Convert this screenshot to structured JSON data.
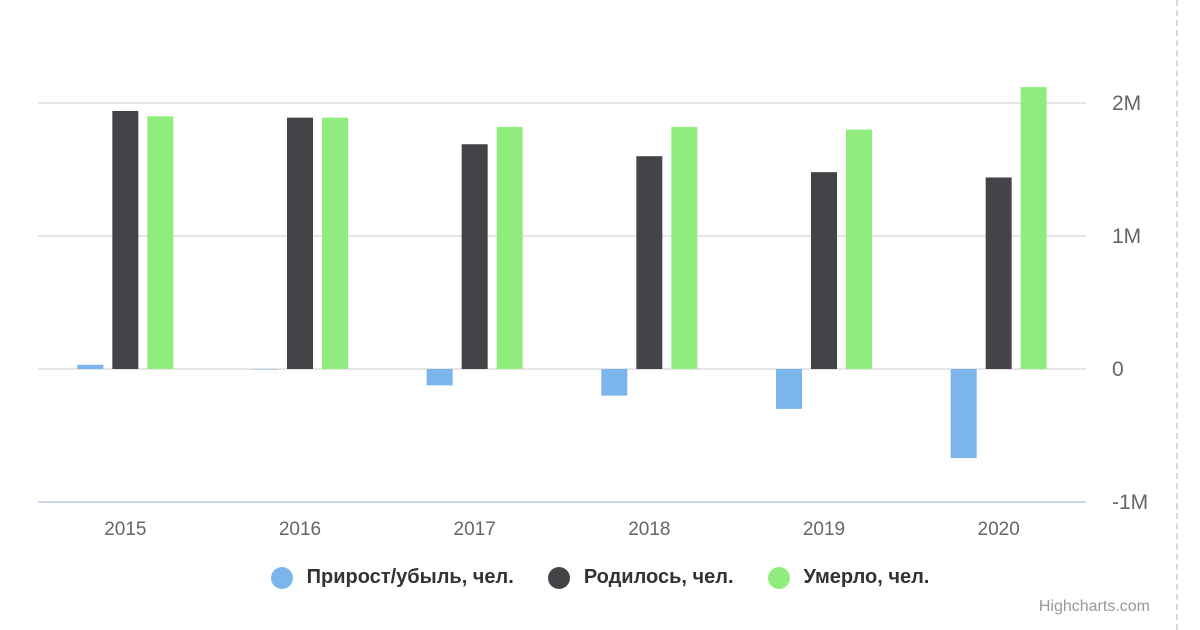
{
  "chart_data": {
    "type": "bar",
    "categories": [
      "2015",
      "2016",
      "2017",
      "2018",
      "2019",
      "2020"
    ],
    "series": [
      {
        "name": "Прирост/убыль, чел.",
        "color": "#7cb5ec",
        "values": [
          32000,
          -2000,
          -123000,
          -200000,
          -300000,
          -670000
        ]
      },
      {
        "name": "Родилось, чел.",
        "color": "#434348",
        "values": [
          1940000,
          1890000,
          1690000,
          1600000,
          1480000,
          1440000
        ]
      },
      {
        "name": "Умерло, чел.",
        "color": "#90ed7d",
        "values": [
          1900000,
          1890000,
          1820000,
          1820000,
          1800000,
          2120000
        ]
      }
    ],
    "y_ticks": [
      "2M",
      "1M",
      "0",
      "-1M"
    ],
    "y_tick_values": [
      2000000,
      1000000,
      0,
      -1000000
    ],
    "ylim": [
      -1000000,
      2000000
    ],
    "y_axis_side": "right",
    "grid": true,
    "legend_position": "bottom-center"
  },
  "legend": {
    "items": [
      {
        "label": "Прирост/убыль, чел.",
        "color": "#7cb5ec"
      },
      {
        "label": "Родилось, чел.",
        "color": "#434348"
      },
      {
        "label": "Умерло, чел.",
        "color": "#90ed7d"
      }
    ]
  },
  "credits": "Highcharts.com"
}
